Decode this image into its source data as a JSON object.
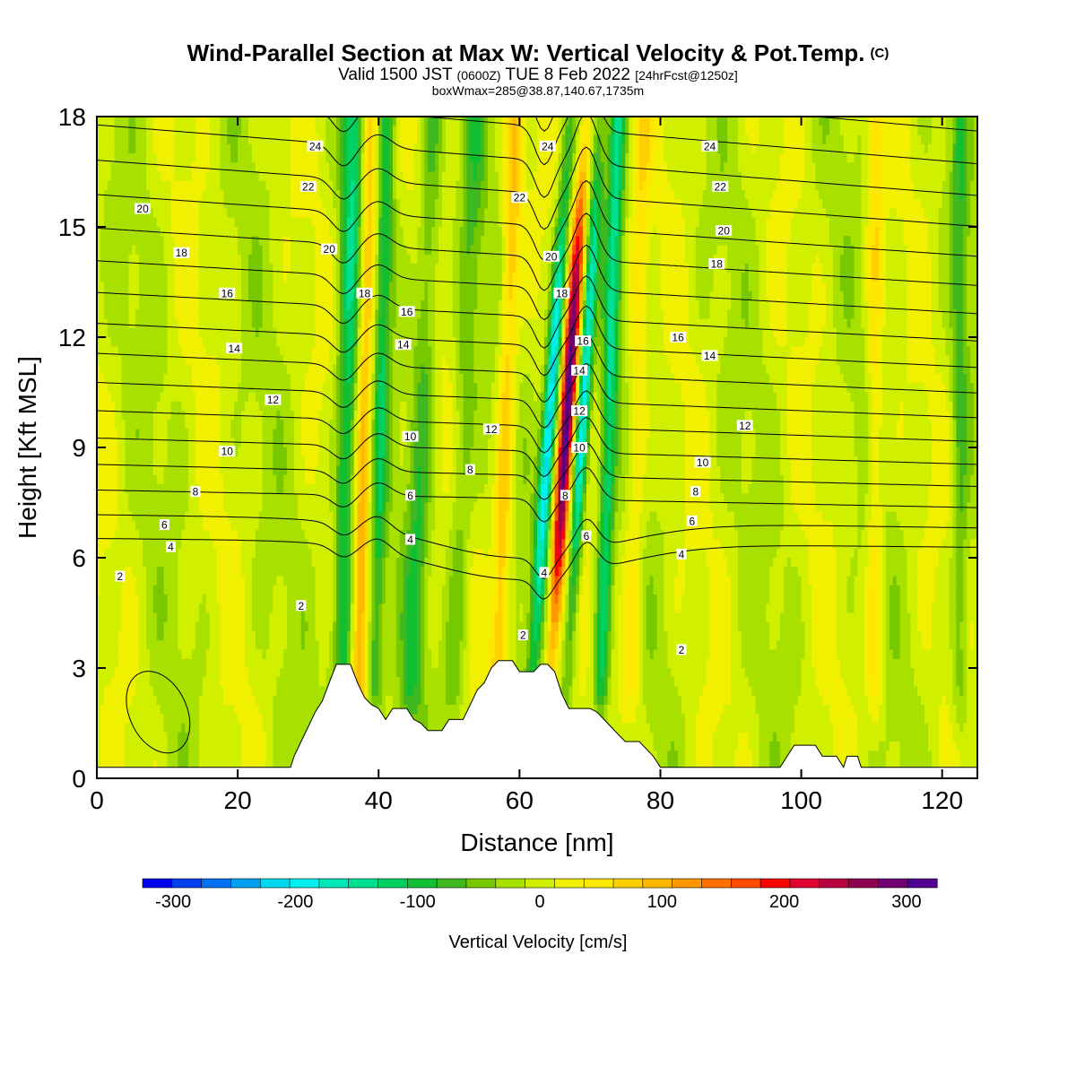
{
  "header": {
    "title": "Wind-Parallel Section at Max W: Vertical Velocity & Pot.Temp.",
    "title_tag": "(C)",
    "valid_a": "Valid 1500 JST",
    "valid_b": "(0600Z)",
    "valid_c": "TUE 8 Feb 2022",
    "valid_d": "[24hrFcst@1250z]",
    "boxline": "boxWmax=285@38.87,140.67,1735m"
  },
  "chart_data": {
    "type": "heatmap",
    "title": "Wind-Parallel Section at Max W: Vertical Velocity & Pot.Temp.",
    "xlabel": "Distance [nm]",
    "ylabel": "Height [Kft MSL]",
    "xlim": [
      0,
      125
    ],
    "ylim": [
      0,
      18
    ],
    "xticks": [
      0,
      20,
      40,
      60,
      80,
      100,
      120
    ],
    "yticks": [
      0,
      3,
      6,
      9,
      12,
      15,
      18
    ],
    "grid": false,
    "colorbar": {
      "label": "Vertical Velocity [cm/s]",
      "ticks": [
        -300,
        -200,
        -100,
        0,
        100,
        200,
        300
      ],
      "min": -325,
      "max": 325,
      "colors": [
        "#0000f0",
        "#0040f0",
        "#0070f0",
        "#00a0f0",
        "#00d8f0",
        "#00f0f0",
        "#00e8b8",
        "#00e090",
        "#00d060",
        "#10c030",
        "#40b820",
        "#78c800",
        "#a8e000",
        "#d0f000",
        "#f0f000",
        "#ffe800",
        "#ffd000",
        "#ffb800",
        "#ff9800",
        "#ff7000",
        "#ff4800",
        "#ff0000",
        "#e00030",
        "#b80040",
        "#900050",
        "#700070",
        "#500090"
      ]
    },
    "vertical_velocity_bands": [
      {
        "x": 35.5,
        "w": 1.6,
        "amp": -120,
        "slope": 0.1
      },
      {
        "x": 37.8,
        "w": 1.3,
        "amp": 110,
        "slope": 0.12
      },
      {
        "x": 40.2,
        "w": 1.2,
        "amp": -90,
        "slope": 0.12
      },
      {
        "x": 46.0,
        "w": 1.6,
        "amp": -70,
        "slope": 0.2
      },
      {
        "x": 52.0,
        "w": 1.6,
        "amp": -55,
        "slope": 0.2
      },
      {
        "x": 58.0,
        "w": 1.3,
        "amp": 90,
        "slope": 0.15
      },
      {
        "x": 64.0,
        "w": 1.0,
        "amp": -210,
        "slope": 0.35
      },
      {
        "x": 66.5,
        "w": 1.0,
        "amp": 285,
        "slope": 0.33
      },
      {
        "x": 68.8,
        "w": 0.9,
        "amp": -180,
        "slope": 0.3
      },
      {
        "x": 72.6,
        "w": 1.1,
        "amp": -120,
        "slope": 0.15
      },
      {
        "x": 76.5,
        "w": 1.4,
        "amp": 55,
        "slope": 0.1
      },
      {
        "x": 110.5,
        "w": 1.2,
        "amp": 60,
        "slope": 0.0
      },
      {
        "x": 122.5,
        "w": 1.2,
        "amp": -60,
        "slope": 0.0
      }
    ],
    "potential_temperature": {
      "levels": [
        2,
        4,
        6,
        8,
        10,
        12,
        14,
        16,
        18,
        20,
        22,
        24
      ],
      "labels": [
        {
          "v": 2,
          "x": 3.3,
          "y": 5.5
        },
        {
          "v": 4,
          "x": 10.5,
          "y": 6.3
        },
        {
          "v": 6,
          "x": 9.6,
          "y": 6.9
        },
        {
          "v": 8,
          "x": 14.0,
          "y": 7.8
        },
        {
          "v": 10,
          "x": 18.5,
          "y": 8.9
        },
        {
          "v": 12,
          "x": 25.0,
          "y": 10.3
        },
        {
          "v": 14,
          "x": 19.5,
          "y": 11.7
        },
        {
          "v": 16,
          "x": 18.5,
          "y": 13.2
        },
        {
          "v": 18,
          "x": 12.0,
          "y": 14.3
        },
        {
          "v": 20,
          "x": 6.5,
          "y": 15.5
        },
        {
          "v": 22,
          "x": 30.0,
          "y": 16.1
        },
        {
          "v": 24,
          "x": 31.0,
          "y": 17.2
        },
        {
          "v": 20,
          "x": 33.0,
          "y": 14.4
        },
        {
          "v": 18,
          "x": 38.0,
          "y": 13.2
        },
        {
          "v": 16,
          "x": 44.0,
          "y": 12.7
        },
        {
          "v": 14,
          "x": 43.5,
          "y": 11.8
        },
        {
          "v": 10,
          "x": 44.5,
          "y": 9.3
        },
        {
          "v": 6,
          "x": 44.5,
          "y": 7.7
        },
        {
          "v": 4,
          "x": 44.5,
          "y": 6.5
        },
        {
          "v": 2,
          "x": 29.0,
          "y": 4.7
        },
        {
          "v": 8,
          "x": 53.0,
          "y": 8.4
        },
        {
          "v": 12,
          "x": 56.0,
          "y": 9.5
        },
        {
          "v": 22,
          "x": 60.0,
          "y": 15.8
        },
        {
          "v": 24,
          "x": 64.0,
          "y": 17.2
        },
        {
          "v": 20,
          "x": 64.5,
          "y": 14.2
        },
        {
          "v": 18,
          "x": 66.0,
          "y": 13.2
        },
        {
          "v": 16,
          "x": 69.0,
          "y": 11.9
        },
        {
          "v": 14,
          "x": 68.5,
          "y": 11.1
        },
        {
          "v": 12,
          "x": 68.5,
          "y": 10.0
        },
        {
          "v": 10,
          "x": 68.5,
          "y": 9.0
        },
        {
          "v": 8,
          "x": 66.5,
          "y": 7.7
        },
        {
          "v": 6,
          "x": 69.5,
          "y": 6.6
        },
        {
          "v": 4,
          "x": 63.5,
          "y": 5.6
        },
        {
          "v": 2,
          "x": 60.5,
          "y": 3.9
        },
        {
          "v": 2,
          "x": 83.0,
          "y": 3.5
        },
        {
          "v": 4,
          "x": 83.0,
          "y": 6.1
        },
        {
          "v": 6,
          "x": 84.5,
          "y": 7.0
        },
        {
          "v": 8,
          "x": 85.0,
          "y": 7.8
        },
        {
          "v": 10,
          "x": 86.0,
          "y": 8.6
        },
        {
          "v": 12,
          "x": 92.0,
          "y": 9.6
        },
        {
          "v": 14,
          "x": 87.0,
          "y": 11.5
        },
        {
          "v": 16,
          "x": 82.5,
          "y": 12.0
        },
        {
          "v": 18,
          "x": 88.0,
          "y": 14.0
        },
        {
          "v": 20,
          "x": 89.0,
          "y": 14.9
        },
        {
          "v": 22,
          "x": 88.5,
          "y": 16.1
        },
        {
          "v": 24,
          "x": 87.0,
          "y": 17.2
        }
      ]
    },
    "terrain": [
      [
        0,
        0.3
      ],
      [
        27.5,
        0.3
      ],
      [
        28,
        0.6
      ],
      [
        29,
        1.0
      ],
      [
        30,
        1.4
      ],
      [
        31,
        1.8
      ],
      [
        32,
        2.1
      ],
      [
        33,
        2.6
      ],
      [
        34,
        3.1
      ],
      [
        36,
        3.1
      ],
      [
        37,
        2.6
      ],
      [
        38,
        2.2
      ],
      [
        39,
        2.0
      ],
      [
        40,
        1.9
      ],
      [
        41,
        1.6
      ],
      [
        42,
        1.9
      ],
      [
        44,
        1.9
      ],
      [
        45,
        1.6
      ],
      [
        46,
        1.5
      ],
      [
        47,
        1.3
      ],
      [
        49,
        1.3
      ],
      [
        50,
        1.6
      ],
      [
        52,
        1.6
      ],
      [
        53,
        2.0
      ],
      [
        54,
        2.4
      ],
      [
        55,
        2.6
      ],
      [
        56,
        3.0
      ],
      [
        57,
        3.2
      ],
      [
        59,
        3.2
      ],
      [
        60,
        2.9
      ],
      [
        62,
        2.9
      ],
      [
        63,
        3.1
      ],
      [
        64,
        3.1
      ],
      [
        65,
        2.9
      ],
      [
        66,
        2.3
      ],
      [
        67,
        1.9
      ],
      [
        68,
        1.9
      ],
      [
        70,
        1.9
      ],
      [
        71,
        1.8
      ],
      [
        72,
        1.6
      ],
      [
        73,
        1.4
      ],
      [
        74,
        1.2
      ],
      [
        75,
        1.0
      ],
      [
        77,
        1.0
      ],
      [
        78,
        0.8
      ],
      [
        79,
        0.6
      ],
      [
        80,
        0.3
      ],
      [
        97,
        0.3
      ],
      [
        98,
        0.6
      ],
      [
        99,
        0.9
      ],
      [
        102,
        0.9
      ],
      [
        103,
        0.6
      ],
      [
        105,
        0.6
      ],
      [
        106,
        0.3
      ],
      [
        106.5,
        0.6
      ],
      [
        108,
        0.6
      ],
      [
        108.5,
        0.3
      ],
      [
        125,
        0.3
      ]
    ]
  }
}
